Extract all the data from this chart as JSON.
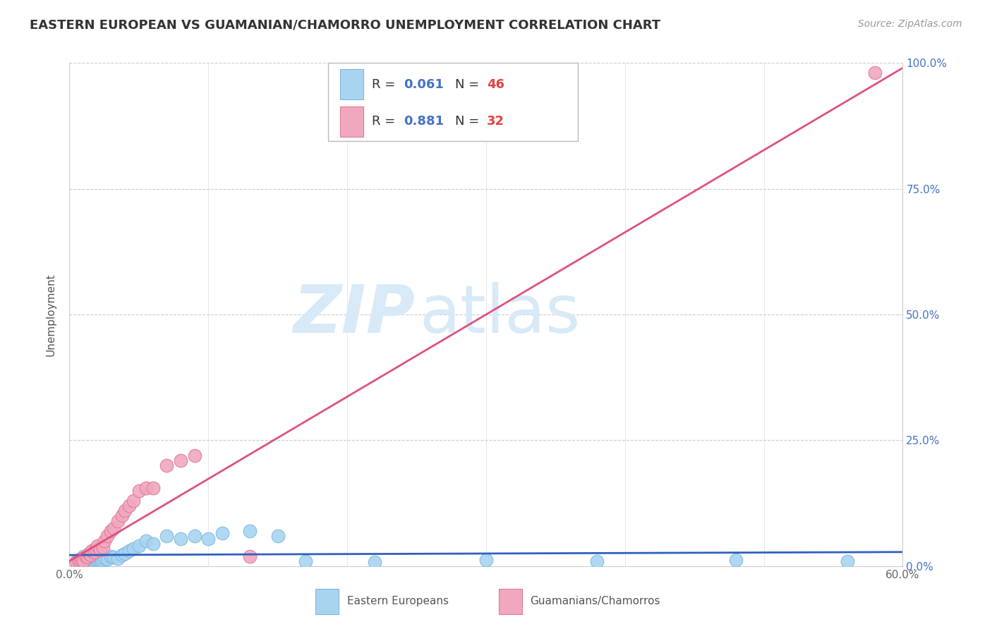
{
  "title": "EASTERN EUROPEAN VS GUAMANIAN/CHAMORRO UNEMPLOYMENT CORRELATION CHART",
  "source": "Source: ZipAtlas.com",
  "ylabel": "Unemployment",
  "xlim": [
    0,
    0.6
  ],
  "ylim": [
    0,
    1.0
  ],
  "blue_color": "#a8d4f0",
  "blue_edge_color": "#7ab8e0",
  "pink_color": "#f0a8be",
  "pink_edge_color": "#e07898",
  "blue_line_color": "#3060c0",
  "pink_line_color": "#e05080",
  "legend_r_color": "#4472C4",
  "legend_n_color": "#E84040",
  "watermark_color": "#d8eaf8",
  "blue_x": [
    0.005,
    0.007,
    0.008,
    0.009,
    0.01,
    0.01,
    0.011,
    0.012,
    0.013,
    0.014,
    0.015,
    0.016,
    0.016,
    0.017,
    0.018,
    0.019,
    0.02,
    0.021,
    0.022,
    0.023,
    0.024,
    0.025,
    0.027,
    0.03,
    0.032,
    0.035,
    0.038,
    0.04,
    0.043,
    0.046,
    0.05,
    0.055,
    0.06,
    0.07,
    0.08,
    0.09,
    0.1,
    0.11,
    0.13,
    0.15,
    0.17,
    0.22,
    0.3,
    0.38,
    0.48,
    0.56
  ],
  "blue_y": [
    0.01,
    0.012,
    0.008,
    0.015,
    0.01,
    0.02,
    0.012,
    0.008,
    0.015,
    0.01,
    0.012,
    0.008,
    0.018,
    0.01,
    0.014,
    0.009,
    0.011,
    0.013,
    0.015,
    0.01,
    0.012,
    0.016,
    0.014,
    0.02,
    0.018,
    0.015,
    0.022,
    0.025,
    0.03,
    0.035,
    0.04,
    0.05,
    0.045,
    0.06,
    0.055,
    0.06,
    0.055,
    0.065,
    0.07,
    0.06,
    0.01,
    0.008,
    0.012,
    0.01,
    0.012,
    0.01
  ],
  "pink_x": [
    0.005,
    0.007,
    0.008,
    0.009,
    0.01,
    0.012,
    0.013,
    0.014,
    0.015,
    0.016,
    0.018,
    0.019,
    0.02,
    0.022,
    0.024,
    0.025,
    0.027,
    0.03,
    0.032,
    0.035,
    0.038,
    0.04,
    0.043,
    0.046,
    0.05,
    0.055,
    0.06,
    0.07,
    0.08,
    0.09,
    0.13,
    0.58
  ],
  "pink_y": [
    0.008,
    0.01,
    0.012,
    0.015,
    0.01,
    0.02,
    0.018,
    0.025,
    0.022,
    0.03,
    0.028,
    0.035,
    0.04,
    0.032,
    0.038,
    0.05,
    0.06,
    0.07,
    0.075,
    0.09,
    0.1,
    0.11,
    0.12,
    0.13,
    0.15,
    0.155,
    0.155,
    0.2,
    0.21,
    0.22,
    0.02,
    0.98
  ],
  "blue_line_x": [
    0.0,
    0.6
  ],
  "blue_line_y": [
    0.022,
    0.028
  ],
  "pink_line_x": [
    0.0,
    0.6
  ],
  "pink_line_y": [
    0.01,
    0.99
  ]
}
